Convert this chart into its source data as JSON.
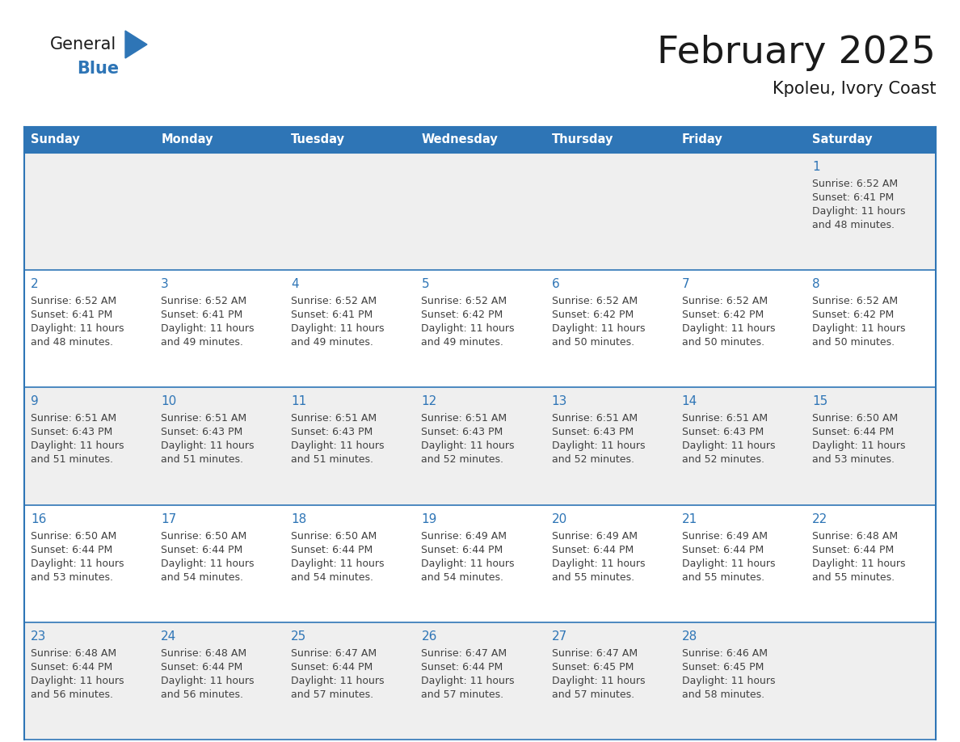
{
  "title": "February 2025",
  "subtitle": "Kpoleu, Ivory Coast",
  "days_of_week": [
    "Sunday",
    "Monday",
    "Tuesday",
    "Wednesday",
    "Thursday",
    "Friday",
    "Saturday"
  ],
  "header_bg": "#2E75B6",
  "header_text": "#FFFFFF",
  "cell_bg_gray": "#EFEFEF",
  "cell_bg_white": "#FFFFFF",
  "border_color": "#2E75B6",
  "cell_border_color": "#2E75B6",
  "day_number_color": "#2E75B6",
  "info_text_color": "#404040",
  "title_color": "#1a1a1a",
  "logo_general_color": "#1a1a1a",
  "logo_blue_color": "#2E75B6",
  "calendar": [
    [
      null,
      null,
      null,
      null,
      null,
      null,
      {
        "day": 1,
        "sunrise": "6:52 AM",
        "sunset": "6:41 PM",
        "daylight": "11 hours and 48 minutes."
      }
    ],
    [
      {
        "day": 2,
        "sunrise": "6:52 AM",
        "sunset": "6:41 PM",
        "daylight": "11 hours and 48 minutes."
      },
      {
        "day": 3,
        "sunrise": "6:52 AM",
        "sunset": "6:41 PM",
        "daylight": "11 hours and 49 minutes."
      },
      {
        "day": 4,
        "sunrise": "6:52 AM",
        "sunset": "6:41 PM",
        "daylight": "11 hours and 49 minutes."
      },
      {
        "day": 5,
        "sunrise": "6:52 AM",
        "sunset": "6:42 PM",
        "daylight": "11 hours and 49 minutes."
      },
      {
        "day": 6,
        "sunrise": "6:52 AM",
        "sunset": "6:42 PM",
        "daylight": "11 hours and 50 minutes."
      },
      {
        "day": 7,
        "sunrise": "6:52 AM",
        "sunset": "6:42 PM",
        "daylight": "11 hours and 50 minutes."
      },
      {
        "day": 8,
        "sunrise": "6:52 AM",
        "sunset": "6:42 PM",
        "daylight": "11 hours and 50 minutes."
      }
    ],
    [
      {
        "day": 9,
        "sunrise": "6:51 AM",
        "sunset": "6:43 PM",
        "daylight": "11 hours and 51 minutes."
      },
      {
        "day": 10,
        "sunrise": "6:51 AM",
        "sunset": "6:43 PM",
        "daylight": "11 hours and 51 minutes."
      },
      {
        "day": 11,
        "sunrise": "6:51 AM",
        "sunset": "6:43 PM",
        "daylight": "11 hours and 51 minutes."
      },
      {
        "day": 12,
        "sunrise": "6:51 AM",
        "sunset": "6:43 PM",
        "daylight": "11 hours and 52 minutes."
      },
      {
        "day": 13,
        "sunrise": "6:51 AM",
        "sunset": "6:43 PM",
        "daylight": "11 hours and 52 minutes."
      },
      {
        "day": 14,
        "sunrise": "6:51 AM",
        "sunset": "6:43 PM",
        "daylight": "11 hours and 52 minutes."
      },
      {
        "day": 15,
        "sunrise": "6:50 AM",
        "sunset": "6:44 PM",
        "daylight": "11 hours and 53 minutes."
      }
    ],
    [
      {
        "day": 16,
        "sunrise": "6:50 AM",
        "sunset": "6:44 PM",
        "daylight": "11 hours and 53 minutes."
      },
      {
        "day": 17,
        "sunrise": "6:50 AM",
        "sunset": "6:44 PM",
        "daylight": "11 hours and 54 minutes."
      },
      {
        "day": 18,
        "sunrise": "6:50 AM",
        "sunset": "6:44 PM",
        "daylight": "11 hours and 54 minutes."
      },
      {
        "day": 19,
        "sunrise": "6:49 AM",
        "sunset": "6:44 PM",
        "daylight": "11 hours and 54 minutes."
      },
      {
        "day": 20,
        "sunrise": "6:49 AM",
        "sunset": "6:44 PM",
        "daylight": "11 hours and 55 minutes."
      },
      {
        "day": 21,
        "sunrise": "6:49 AM",
        "sunset": "6:44 PM",
        "daylight": "11 hours and 55 minutes."
      },
      {
        "day": 22,
        "sunrise": "6:48 AM",
        "sunset": "6:44 PM",
        "daylight": "11 hours and 55 minutes."
      }
    ],
    [
      {
        "day": 23,
        "sunrise": "6:48 AM",
        "sunset": "6:44 PM",
        "daylight": "11 hours and 56 minutes."
      },
      {
        "day": 24,
        "sunrise": "6:48 AM",
        "sunset": "6:44 PM",
        "daylight": "11 hours and 56 minutes."
      },
      {
        "day": 25,
        "sunrise": "6:47 AM",
        "sunset": "6:44 PM",
        "daylight": "11 hours and 57 minutes."
      },
      {
        "day": 26,
        "sunrise": "6:47 AM",
        "sunset": "6:44 PM",
        "daylight": "11 hours and 57 minutes."
      },
      {
        "day": 27,
        "sunrise": "6:47 AM",
        "sunset": "6:45 PM",
        "daylight": "11 hours and 57 minutes."
      },
      {
        "day": 28,
        "sunrise": "6:46 AM",
        "sunset": "6:45 PM",
        "daylight": "11 hours and 58 minutes."
      },
      null
    ]
  ],
  "row_bg_colors": [
    "#EFEFEF",
    "#FFFFFF",
    "#EFEFEF",
    "#FFFFFF",
    "#EFEFEF"
  ]
}
